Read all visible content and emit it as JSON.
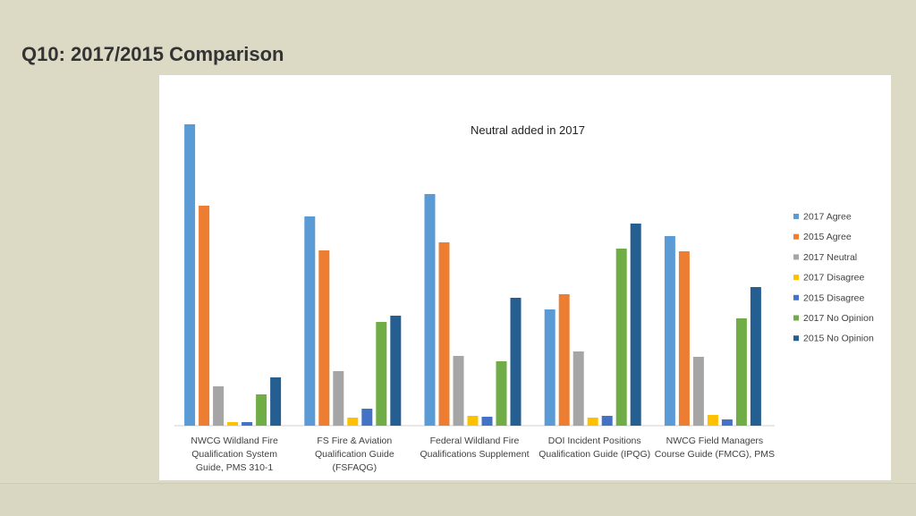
{
  "slide_title": "Q10: 2017/2015 Comparison",
  "chart_data": {
    "type": "bar",
    "title": "Neutral added in 2017",
    "categories": [
      [
        "NWCG Wildland Fire",
        "Qualification System",
        "Guide, PMS 310-1"
      ],
      [
        "FS Fire & Aviation",
        "Qualification Guide",
        "(FSFAQG)"
      ],
      [
        "Federal Wildland Fire",
        "Qualifications Supplement"
      ],
      [
        "DOI Incident Positions",
        "Qualification Guide (IPQG)"
      ],
      [
        "NWCG Field Managers",
        "Course Guide (FMCG), PMS"
      ]
    ],
    "series": [
      {
        "name": "2017 Agree",
        "color": "#5b9bd5",
        "values": [
          337,
          234,
          259,
          130,
          212
        ]
      },
      {
        "name": "2015 Agree",
        "color": "#ed7d31",
        "values": [
          246,
          196,
          205,
          147,
          195
        ]
      },
      {
        "name": "2017 Neutral",
        "color": "#a5a5a5",
        "values": [
          44,
          61,
          78,
          83,
          77
        ]
      },
      {
        "name": "2017 Disagree",
        "color": "#ffc000",
        "values": [
          4,
          9,
          11,
          9,
          12
        ]
      },
      {
        "name": "2015 Disagree",
        "color": "#4472c4",
        "values": [
          4,
          19,
          10,
          11,
          7
        ]
      },
      {
        "name": "2017 No Opinion",
        "color": "#70ad47",
        "values": [
          35,
          116,
          72,
          198,
          120
        ]
      },
      {
        "name": "2015 No Opinion",
        "color": "#255e91",
        "values": [
          54,
          123,
          143,
          226,
          155
        ]
      }
    ],
    "xlabel": "",
    "ylabel": "",
    "y_axis_shown": false,
    "grid": false,
    "legend_placement": "right"
  }
}
